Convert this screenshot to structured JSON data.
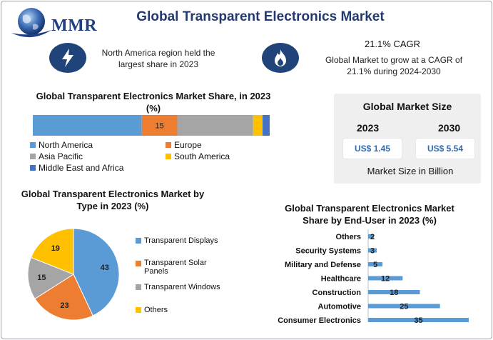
{
  "header": {
    "logo_text": "MMR",
    "title": "Global Transparent Electronics Market"
  },
  "info": {
    "region_text": "North America region held the largest share in 2023",
    "cagr_title": "21.1% CAGR",
    "cagr_text": "Global Market to grow at a CAGR of 21.1% during 2024-2030",
    "region_icon": "lightning-icon",
    "cagr_icon": "flame-icon"
  },
  "market_size": {
    "title": "Global Market Size",
    "year1": "2023",
    "year2": "2030",
    "value1": "US$ 1.45",
    "value2": "US$ 5.54",
    "unit": "Market Size in Billion"
  },
  "colors": {
    "blue": "#5b9bd5",
    "orange": "#ed7d31",
    "gray": "#a5a5a5",
    "yellow": "#ffc000",
    "darkblue": "#4472c4",
    "navy": "#20447a"
  },
  "chart_data": [
    {
      "type": "bar",
      "orientation": "horizontal-stacked",
      "title": "Global Transparent Electronics Market Share, in 2023 (%)",
      "series": [
        {
          "name": "North America",
          "value": 46,
          "color": "#5b9bd5",
          "label": ""
        },
        {
          "name": "Europe",
          "value": 15,
          "color": "#ed7d31",
          "label": "15"
        },
        {
          "name": "Asia Pacific",
          "value": 32,
          "color": "#a5a5a5",
          "label": ""
        },
        {
          "name": "South America",
          "value": 4,
          "color": "#ffc000",
          "label": ""
        },
        {
          "name": "Middle East and Africa",
          "value": 3,
          "color": "#4472c4",
          "label": ""
        }
      ]
    },
    {
      "type": "pie",
      "title": "Global Transparent Electronics Market by Type in 2023 (%)",
      "categories": [
        "Transparent Displays",
        "Transparent Solar Panels",
        "Transparent Windows",
        "Others"
      ],
      "values": [
        43,
        23,
        15,
        19
      ],
      "colors": [
        "#5b9bd5",
        "#ed7d31",
        "#a5a5a5",
        "#ffc000"
      ]
    },
    {
      "type": "bar",
      "orientation": "horizontal",
      "title": "Global Transparent Electronics Market Share by End-User in 2023 (%)",
      "categories": [
        "Others",
        "Security Systems",
        "Military and Defense",
        "Healthcare",
        "Construction",
        "Automotive",
        "Consumer Electronics"
      ],
      "values": [
        2,
        3,
        5,
        12,
        18,
        25,
        35
      ],
      "color": "#5b9bd5"
    }
  ]
}
